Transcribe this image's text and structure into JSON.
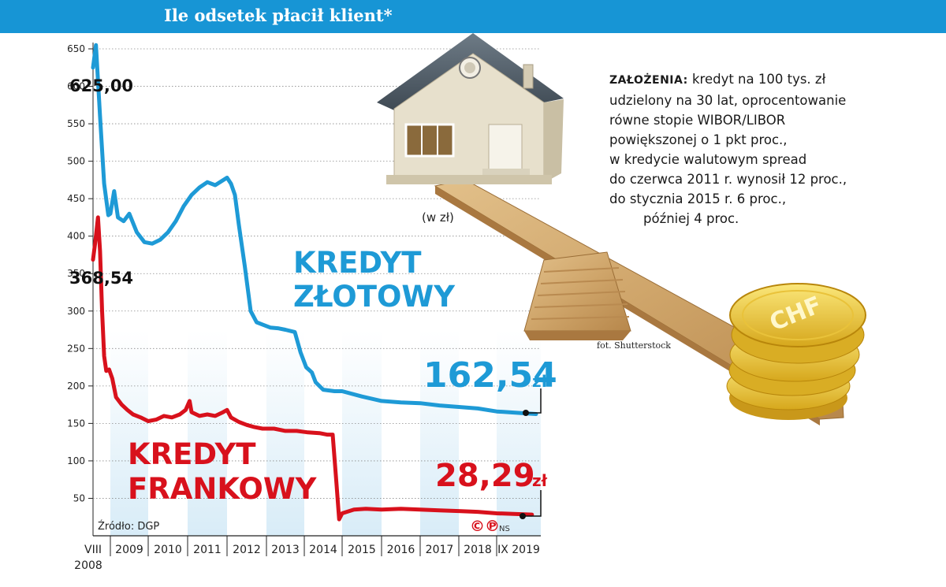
{
  "header": {
    "title": "Ile odsetek płacił klient*"
  },
  "assumptions": {
    "label": "ZAŁOŻENIA:",
    "lines": [
      "kredyt na 100 tys. zł",
      "udzielony na 30 lat, oprocentowanie",
      "równe stopie WIBOR/LIBOR",
      "powiększonej o 1 pkt proc.,",
      "w kredycie walutowym spread",
      "do czerwca 2011 r. wynosił 12 proc.,",
      "do stycznia 2015 r. 6 proc.,",
      "później 4 proc."
    ]
  },
  "photo": {
    "credit": "fot. Shutterstock",
    "coin_text": "CHF"
  },
  "colors": {
    "header": "#1795d5",
    "zloty": "#1e9ad6",
    "franc": "#d8111c",
    "text": "#1a1a1a"
  },
  "chart_data": {
    "type": "line",
    "unit_label": "(w zł)",
    "yticks": [
      50,
      100,
      150,
      200,
      250,
      300,
      350,
      400,
      450,
      500,
      550,
      600,
      650
    ],
    "ylim": [
      0,
      670
    ],
    "x_start_label": [
      "VIII",
      "2008"
    ],
    "x_labels": [
      "2009",
      "2010",
      "2011",
      "2012",
      "2013",
      "2014",
      "2015",
      "2016",
      "2017",
      "2018",
      "IX 2019"
    ],
    "source": "Źródło: DGP",
    "logo_text": "©℗",
    "author": "NS",
    "series": [
      {
        "name_lines": [
          "KREDYT",
          "ZŁOTOWY"
        ],
        "color": "#1e9ad6",
        "start_label": "625,00",
        "end_value": "162,54",
        "end_unit": "zł",
        "points": [
          [
            2008.58,
            625
          ],
          [
            2008.65,
            655
          ],
          [
            2008.75,
            560
          ],
          [
            2008.85,
            470
          ],
          [
            2008.95,
            428
          ],
          [
            2009.0,
            430
          ],
          [
            2009.1,
            460
          ],
          [
            2009.2,
            425
          ],
          [
            2009.35,
            420
          ],
          [
            2009.5,
            430
          ],
          [
            2009.7,
            405
          ],
          [
            2009.9,
            392
          ],
          [
            2010.1,
            390
          ],
          [
            2010.3,
            395
          ],
          [
            2010.5,
            405
          ],
          [
            2010.7,
            420
          ],
          [
            2010.9,
            440
          ],
          [
            2011.1,
            455
          ],
          [
            2011.3,
            465
          ],
          [
            2011.5,
            472
          ],
          [
            2011.7,
            468
          ],
          [
            2011.85,
            473
          ],
          [
            2012.0,
            478
          ],
          [
            2012.1,
            470
          ],
          [
            2012.2,
            455
          ],
          [
            2012.3,
            415
          ],
          [
            2012.45,
            360
          ],
          [
            2012.6,
            300
          ],
          [
            2012.75,
            285
          ],
          [
            2012.9,
            282
          ],
          [
            2013.1,
            278
          ],
          [
            2013.3,
            277
          ],
          [
            2013.5,
            275
          ],
          [
            2013.75,
            272
          ],
          [
            2013.9,
            245
          ],
          [
            2014.05,
            225
          ],
          [
            2014.2,
            218
          ],
          [
            2014.3,
            205
          ],
          [
            2014.5,
            195
          ],
          [
            2014.8,
            193
          ],
          [
            2015.0,
            193
          ],
          [
            2015.5,
            186
          ],
          [
            2016.0,
            180
          ],
          [
            2016.5,
            178
          ],
          [
            2017.0,
            177
          ],
          [
            2017.5,
            174
          ],
          [
            2018.0,
            172
          ],
          [
            2018.5,
            170
          ],
          [
            2019.0,
            166
          ],
          [
            2019.67,
            162.54
          ]
        ]
      },
      {
        "name_lines": [
          "KREDYT",
          "FRANKOWY"
        ],
        "color": "#d8111c",
        "start_label": "368,54",
        "end_value": "28,29",
        "end_unit": "zł",
        "points": [
          [
            2008.58,
            368.54
          ],
          [
            2008.63,
            390
          ],
          [
            2008.7,
            425
          ],
          [
            2008.75,
            380
          ],
          [
            2008.8,
            300
          ],
          [
            2008.85,
            240
          ],
          [
            2008.9,
            220
          ],
          [
            2008.97,
            222
          ],
          [
            2009.05,
            210
          ],
          [
            2009.15,
            185
          ],
          [
            2009.3,
            175
          ],
          [
            2009.45,
            168
          ],
          [
            2009.6,
            162
          ],
          [
            2009.8,
            158
          ],
          [
            2010.0,
            153
          ],
          [
            2010.2,
            155
          ],
          [
            2010.4,
            160
          ],
          [
            2010.6,
            158
          ],
          [
            2010.8,
            162
          ],
          [
            2010.95,
            168
          ],
          [
            2011.05,
            180
          ],
          [
            2011.1,
            165
          ],
          [
            2011.3,
            160
          ],
          [
            2011.5,
            162
          ],
          [
            2011.7,
            160
          ],
          [
            2011.9,
            165
          ],
          [
            2012.0,
            168
          ],
          [
            2012.1,
            158
          ],
          [
            2012.3,
            152
          ],
          [
            2012.5,
            148
          ],
          [
            2012.7,
            145
          ],
          [
            2012.9,
            143
          ],
          [
            2013.2,
            143
          ],
          [
            2013.5,
            140
          ],
          [
            2013.8,
            140
          ],
          [
            2014.1,
            138
          ],
          [
            2014.4,
            137
          ],
          [
            2014.6,
            135
          ],
          [
            2014.75,
            135
          ],
          [
            2014.85,
            70
          ],
          [
            2014.92,
            22
          ],
          [
            2015.0,
            30
          ],
          [
            2015.3,
            35
          ],
          [
            2015.6,
            36
          ],
          [
            2016.0,
            35
          ],
          [
            2016.5,
            36
          ],
          [
            2017.0,
            35
          ],
          [
            2017.5,
            34
          ],
          [
            2018.0,
            33
          ],
          [
            2018.5,
            32
          ],
          [
            2019.0,
            30
          ],
          [
            2019.6,
            28.29
          ]
        ]
      }
    ]
  }
}
